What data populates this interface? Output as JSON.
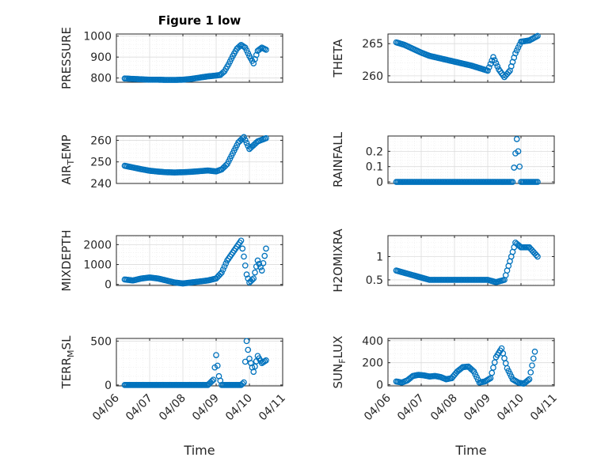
{
  "figure": {
    "title": "Figure 1 low",
    "xlabel": "Time",
    "marker_color": "#0072BD"
  },
  "chart_data": [
    {
      "id": "pressure",
      "type": "scatter",
      "ylabel": "PRESSURE",
      "title": "Figure 1 low",
      "ylim": [
        780,
        1010
      ],
      "yticks": [
        800,
        900,
        1000
      ],
      "x": [
        "04/06 06:00",
        "04/06 12:00",
        "04/06 18:00",
        "04/07 00:00",
        "04/07 06:00",
        "04/07 12:00",
        "04/07 18:00",
        "04/08 00:00",
        "04/08 06:00",
        "04/08 12:00",
        "04/08 18:00",
        "04/09 00:00",
        "04/09 03:00",
        "04/09 06:00",
        "04/09 09:00",
        "04/09 12:00",
        "04/09 15:00",
        "04/09 18:00",
        "04/09 21:00",
        "04/10 00:00",
        "04/10 03:00",
        "04/10 06:00",
        "04/10 09:00",
        "04/10 12:00"
      ],
      "y": [
        798,
        796,
        794,
        792,
        792,
        791,
        791,
        792,
        796,
        802,
        808,
        812,
        815,
        832,
        866,
        905,
        940,
        958,
        945,
        905,
        870,
        930,
        945,
        935
      ]
    },
    {
      "id": "theta",
      "type": "scatter",
      "ylabel": "THETA",
      "ylim": [
        259,
        266.5
      ],
      "yticks": [
        260,
        265
      ],
      "x": [
        "04/06 06:00",
        "04/06 12:00",
        "04/06 18:00",
        "04/07 00:00",
        "04/07 06:00",
        "04/07 12:00",
        "04/07 18:00",
        "04/08 00:00",
        "04/08 06:00",
        "04/08 12:00",
        "04/08 18:00",
        "04/09 00:00",
        "04/09 04:00",
        "04/09 08:00",
        "04/09 12:00",
        "04/09 16:00",
        "04/09 20:00",
        "04/10 00:00",
        "04/10 06:00",
        "04/10 12:00"
      ],
      "y": [
        265.2,
        264.8,
        264.2,
        263.6,
        263.1,
        262.8,
        262.5,
        262.2,
        261.9,
        261.6,
        261.2,
        260.8,
        262.9,
        261.0,
        259.8,
        260.8,
        263.5,
        265.3,
        265.5,
        266.2
      ]
    },
    {
      "id": "air_temp",
      "type": "scatter",
      "ylabel": "AIR",
      "ylabel_sub": "T",
      "ylabel_tail": "EMP",
      "ylim": [
        240,
        262
      ],
      "yticks": [
        240,
        250,
        260
      ],
      "x": [
        "04/06 06:00",
        "04/06 12:00",
        "04/06 18:00",
        "04/07 00:00",
        "04/07 06:00",
        "04/07 12:00",
        "04/07 18:00",
        "04/08 00:00",
        "04/08 06:00",
        "04/08 12:00",
        "04/08 18:00",
        "04/09 00:00",
        "04/09 04:00",
        "04/09 08:00",
        "04/09 12:00",
        "04/09 16:00",
        "04/09 20:00",
        "04/10 00:00",
        "04/10 06:00",
        "04/10 12:00"
      ],
      "y": [
        248.2,
        247.4,
        246.6,
        245.9,
        245.5,
        245.2,
        245.1,
        245.2,
        245.4,
        245.7,
        246.0,
        245.6,
        246.5,
        249.0,
        254.0,
        259.0,
        261.5,
        256.0,
        259.5,
        261.0
      ]
    },
    {
      "id": "rainfall",
      "type": "scatter",
      "ylabel": "RAINFALL",
      "ylim": [
        -0.01,
        0.3
      ],
      "yticks": [
        0,
        0.1,
        0.2
      ],
      "x": [
        "04/06 06:00",
        "04/06 12:00",
        "04/06 18:00",
        "04/07 00:00",
        "04/07 06:00",
        "04/07 12:00",
        "04/07 18:00",
        "04/08 00:00",
        "04/08 06:00",
        "04/08 12:00",
        "04/08 18:00",
        "04/09 00:00",
        "04/09 06:00",
        "04/09 12:00",
        "04/09 18:00",
        "04/09 21:00",
        "04/09 22:00",
        "04/09 23:00",
        "04/10 00:00",
        "04/10 06:00",
        "04/10 12:00"
      ],
      "y": [
        0,
        0,
        0,
        0,
        0,
        0,
        0,
        0,
        0,
        0,
        0,
        0,
        0,
        0,
        0,
        0.28,
        0.2,
        0.1,
        0,
        0,
        0
      ]
    },
    {
      "id": "mixdepth",
      "type": "scatter",
      "ylabel": "MIXDEPTH",
      "ylim": [
        -50,
        2450
      ],
      "yticks": [
        0,
        1000,
        2000
      ],
      "x": [
        "04/06 06:00",
        "04/06 12:00",
        "04/06 18:00",
        "04/07 00:00",
        "04/07 06:00",
        "04/07 12:00",
        "04/07 18:00",
        "04/08 00:00",
        "04/08 06:00",
        "04/08 12:00",
        "04/08 18:00",
        "04/09 00:00",
        "04/09 04:00",
        "04/09 08:00",
        "04/09 12:00",
        "04/09 16:00",
        "04/09 18:00",
        "04/09 20:00",
        "04/09 22:00",
        "04/10 00:00",
        "04/10 03:00",
        "04/10 06:00",
        "04/10 09:00",
        "04/10 12:00"
      ],
      "y": [
        250,
        200,
        300,
        350,
        300,
        200,
        100,
        50,
        100,
        150,
        200,
        300,
        600,
        1200,
        1600,
        2000,
        2200,
        1400,
        500,
        100,
        300,
        1200,
        700,
        1800
      ]
    },
    {
      "id": "h2omixra",
      "type": "scatter",
      "ylabel": "H2OMIXRA",
      "ylim": [
        0.38,
        1.45
      ],
      "yticks": [
        0.5,
        1
      ],
      "x": [
        "04/06 06:00",
        "04/06 12:00",
        "04/06 18:00",
        "04/07 00:00",
        "04/07 06:00",
        "04/07 12:00",
        "04/07 18:00",
        "04/08 00:00",
        "04/08 06:00",
        "04/08 12:00",
        "04/08 18:00",
        "04/09 00:00",
        "04/09 06:00",
        "04/09 12:00",
        "04/09 16:00",
        "04/09 20:00",
        "04/10 00:00",
        "04/10 06:00",
        "04/10 12:00"
      ],
      "y": [
        0.7,
        0.65,
        0.6,
        0.55,
        0.5,
        0.5,
        0.5,
        0.5,
        0.5,
        0.5,
        0.5,
        0.5,
        0.45,
        0.5,
        0.9,
        1.3,
        1.2,
        1.2,
        1.0
      ]
    },
    {
      "id": "terr_msl",
      "type": "scatter",
      "ylabel": "TERR",
      "ylabel_sub": "M",
      "ylabel_tail": "SL",
      "ylim": [
        -10,
        530
      ],
      "yticks": [
        0,
        500
      ],
      "x": [
        "04/06 06:00",
        "04/06 18:00",
        "04/07 06:00",
        "04/07 18:00",
        "04/08 06:00",
        "04/08 18:00",
        "04/08 22:00",
        "04/09 00:00",
        "04/09 02:00",
        "04/09 04:00",
        "04/09 08:00",
        "04/09 12:00",
        "04/09 18:00",
        "04/09 20:00",
        "04/09 22:00",
        "04/10 00:00",
        "04/10 03:00",
        "04/10 06:00",
        "04/10 09:00",
        "04/10 12:00"
      ],
      "y": [
        0,
        0,
        0,
        0,
        0,
        0,
        60,
        340,
        100,
        0,
        0,
        0,
        0,
        30,
        500,
        300,
        150,
        330,
        250,
        280
      ]
    },
    {
      "id": "sun_flux",
      "type": "scatter",
      "ylabel": "SUN",
      "ylabel_sub": "F",
      "ylabel_tail": "LUX",
      "ylim": [
        -10,
        420
      ],
      "yticks": [
        0,
        200,
        400
      ],
      "x": [
        "04/06 06:00",
        "04/06 10:00",
        "04/06 14:00",
        "04/06 18:00",
        "04/06 22:00",
        "04/07 02:00",
        "04/07 06:00",
        "04/07 10:00",
        "04/07 14:00",
        "04/07 18:00",
        "04/07 22:00",
        "04/08 02:00",
        "04/08 06:00",
        "04/08 10:00",
        "04/08 14:00",
        "04/08 18:00",
        "04/08 22:00",
        "04/09 02:00",
        "04/09 06:00",
        "04/09 10:00",
        "04/09 14:00",
        "04/09 18:00",
        "04/09 22:00",
        "04/10 02:00",
        "04/10 06:00",
        "04/10 10:00"
      ],
      "y": [
        30,
        20,
        40,
        80,
        90,
        85,
        75,
        80,
        70,
        50,
        60,
        120,
        160,
        165,
        120,
        20,
        30,
        60,
        250,
        330,
        150,
        50,
        20,
        10,
        50,
        300
      ]
    }
  ],
  "x_axis": {
    "ticks": [
      "04/06",
      "04/07",
      "04/08",
      "04/09",
      "04/10",
      "04/11"
    ],
    "xlim": [
      "04/06 00:00",
      "04/11 00:00"
    ]
  },
  "grid": "on"
}
